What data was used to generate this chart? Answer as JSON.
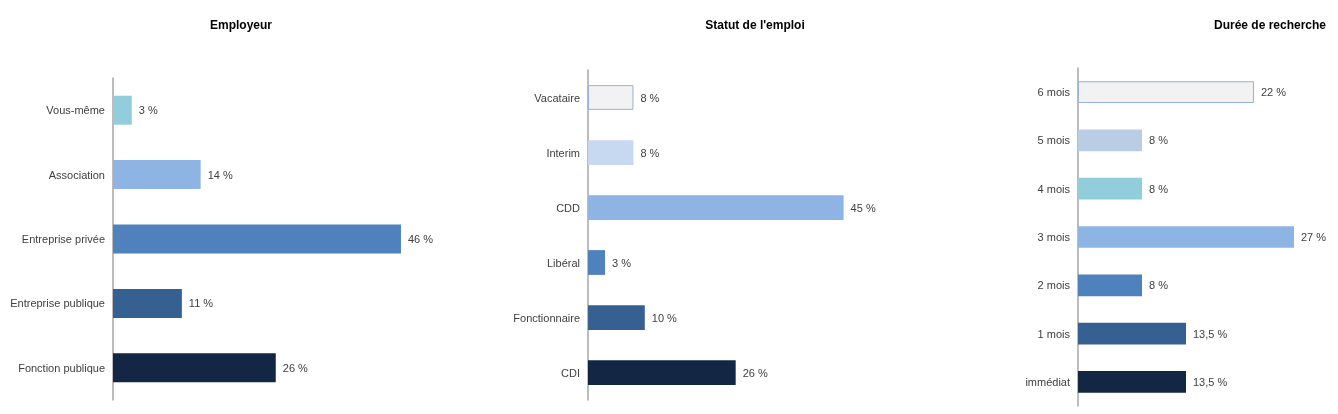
{
  "chart_data": [
    {
      "type": "bar",
      "orientation": "horizontal",
      "title": "Employeur",
      "categories": [
        "Vous-même",
        "Association",
        "Entreprise privée",
        "Entreprise publique",
        "Fonction publique"
      ],
      "values": [
        3,
        14,
        46,
        11,
        26
      ],
      "value_labels": [
        "3 %",
        "14 %",
        "46 %",
        "11 %",
        "26 %"
      ],
      "colors": [
        "#92cddc",
        "#8eb4e3",
        "#4f81bd",
        "#376092",
        "#132644"
      ],
      "tick_labels": "y"
    },
    {
      "type": "bar",
      "orientation": "horizontal",
      "title": "Statut de l'emploi",
      "categories": [
        "Vacataire",
        "Interim",
        "CDD",
        "Libéral",
        "Fonctionnaire",
        "CDI"
      ],
      "values": [
        8,
        8,
        45,
        3,
        10,
        26
      ],
      "value_labels": [
        "8 %",
        "8 %",
        "45 %",
        "3 %",
        "10 %",
        "26 %"
      ],
      "colors": [
        "#f2f2f2",
        "#c6d9f1",
        "#8eb4e3",
        "#4f81bd",
        "#376092",
        "#132644"
      ],
      "tick_labels": "y"
    },
    {
      "type": "bar",
      "orientation": "horizontal",
      "title": "Durée de recherche",
      "categories": [
        "6 mois",
        "5 mois",
        "4 mois",
        "3 mois",
        "2 mois",
        "1 mois",
        "immédiat"
      ],
      "values": [
        22,
        8,
        8,
        27,
        8,
        13.5,
        13.5
      ],
      "value_labels": [
        "22 %",
        "8 %",
        "8 %",
        "27 %",
        "8 %",
        "13,5 %",
        "13,5 %"
      ],
      "colors": [
        "#f2f2f2",
        "#b9cde5",
        "#92cddc",
        "#8eb4e3",
        "#4f81bd",
        "#376092",
        "#132644"
      ],
      "tick_labels": "y"
    }
  ]
}
